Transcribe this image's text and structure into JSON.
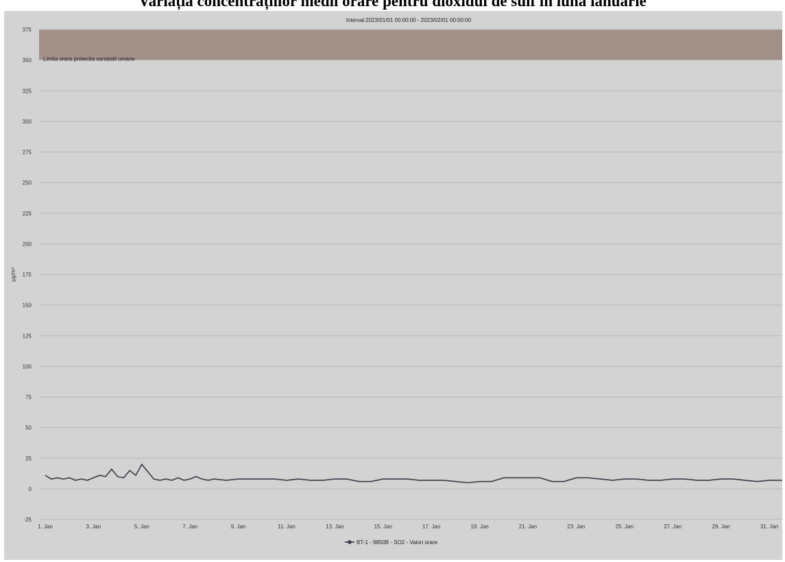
{
  "title": "Variația concentrațiilor medii orare pentru dioxidul de sulf în luna ianuarie",
  "colors": {
    "background": "#d3d3d3",
    "band": "#a39088",
    "grid": "#b8b8b8",
    "line": "#3a3a48"
  },
  "chart_data": {
    "type": "line",
    "subtitle": "Interval:2023/01/01 00:00:00 - 2023/02/01 00:00:00",
    "xlabel": "",
    "ylabel": "µg/m³",
    "ylim": [
      -25,
      375
    ],
    "yticks": [
      -25,
      0,
      25,
      50,
      75,
      100,
      125,
      150,
      175,
      200,
      225,
      250,
      275,
      300,
      325,
      350,
      375
    ],
    "xlim": [
      "2023-01-01",
      "2023-02-01"
    ],
    "xticks": [
      "1. Jan",
      "3. Jan",
      "5. Jan",
      "7. Jan",
      "9. Jan",
      "11. Jan",
      "13. Jan",
      "15. Jan",
      "17. Jan",
      "19. Jan",
      "21. Jan",
      "23. Jan",
      "25. Jan",
      "27. Jan",
      "29. Jan",
      "31. Jan"
    ],
    "grid": true,
    "legend_position": "bottom",
    "plot_band": {
      "from": 350,
      "to": 375,
      "label": "Limita orara protectia sanatatii umane"
    },
    "series": [
      {
        "name": "BT-1 - 9850B - SO2 - Valori orare",
        "x": [
          "2023-01-01 00:00",
          "2023-01-01 06:00",
          "2023-01-01 12:00",
          "2023-01-01 18:00",
          "2023-01-02 00:00",
          "2023-01-02 06:00",
          "2023-01-02 12:00",
          "2023-01-02 18:00",
          "2023-01-03 00:00",
          "2023-01-03 06:00",
          "2023-01-03 12:00",
          "2023-01-03 18:00",
          "2023-01-04 00:00",
          "2023-01-04 06:00",
          "2023-01-04 12:00",
          "2023-01-04 18:00",
          "2023-01-05 00:00",
          "2023-01-05 06:00",
          "2023-01-05 12:00",
          "2023-01-05 18:00",
          "2023-01-06 00:00",
          "2023-01-06 06:00",
          "2023-01-06 12:00",
          "2023-01-06 18:00",
          "2023-01-07 00:00",
          "2023-01-07 06:00",
          "2023-01-07 12:00",
          "2023-01-07 18:00",
          "2023-01-08 00:00",
          "2023-01-08 12:00",
          "2023-01-09 00:00",
          "2023-01-09 12:00",
          "2023-01-10 00:00",
          "2023-01-10 12:00",
          "2023-01-11 00:00",
          "2023-01-11 12:00",
          "2023-01-12 00:00",
          "2023-01-12 12:00",
          "2023-01-13 00:00",
          "2023-01-13 12:00",
          "2023-01-14 00:00",
          "2023-01-14 12:00",
          "2023-01-15 00:00",
          "2023-01-15 12:00",
          "2023-01-16 00:00",
          "2023-01-16 12:00",
          "2023-01-17 00:00",
          "2023-01-17 12:00",
          "2023-01-18 00:00",
          "2023-01-18 12:00",
          "2023-01-19 00:00",
          "2023-01-19 12:00",
          "2023-01-20 00:00",
          "2023-01-20 12:00",
          "2023-01-21 00:00",
          "2023-01-21 12:00",
          "2023-01-22 00:00",
          "2023-01-22 12:00",
          "2023-01-23 00:00",
          "2023-01-23 12:00",
          "2023-01-24 00:00",
          "2023-01-24 12:00",
          "2023-01-25 00:00",
          "2023-01-25 12:00",
          "2023-01-26 00:00",
          "2023-01-26 12:00",
          "2023-01-27 00:00",
          "2023-01-27 12:00",
          "2023-01-28 00:00",
          "2023-01-28 12:00",
          "2023-01-29 00:00",
          "2023-01-29 12:00",
          "2023-01-30 00:00",
          "2023-01-30 12:00",
          "2023-01-31 00:00",
          "2023-01-31 12:00",
          "2023-02-01 00:00"
        ],
        "values": [
          11,
          8,
          9,
          8,
          9,
          7,
          8,
          7,
          9,
          11,
          10,
          16,
          10,
          9,
          15,
          11,
          20,
          14,
          8,
          7,
          8,
          7,
          9,
          7,
          8,
          10,
          8,
          7,
          8,
          7,
          8,
          8,
          8,
          8,
          7,
          8,
          7,
          7,
          8,
          8,
          6,
          6,
          8,
          8,
          8,
          7,
          7,
          7,
          6,
          5,
          6,
          6,
          9,
          9,
          9,
          9,
          6,
          6,
          9,
          9,
          8,
          7,
          8,
          8,
          7,
          7,
          8,
          8,
          7,
          7,
          8,
          8,
          7,
          6,
          7,
          7,
          8
        ]
      }
    ]
  }
}
